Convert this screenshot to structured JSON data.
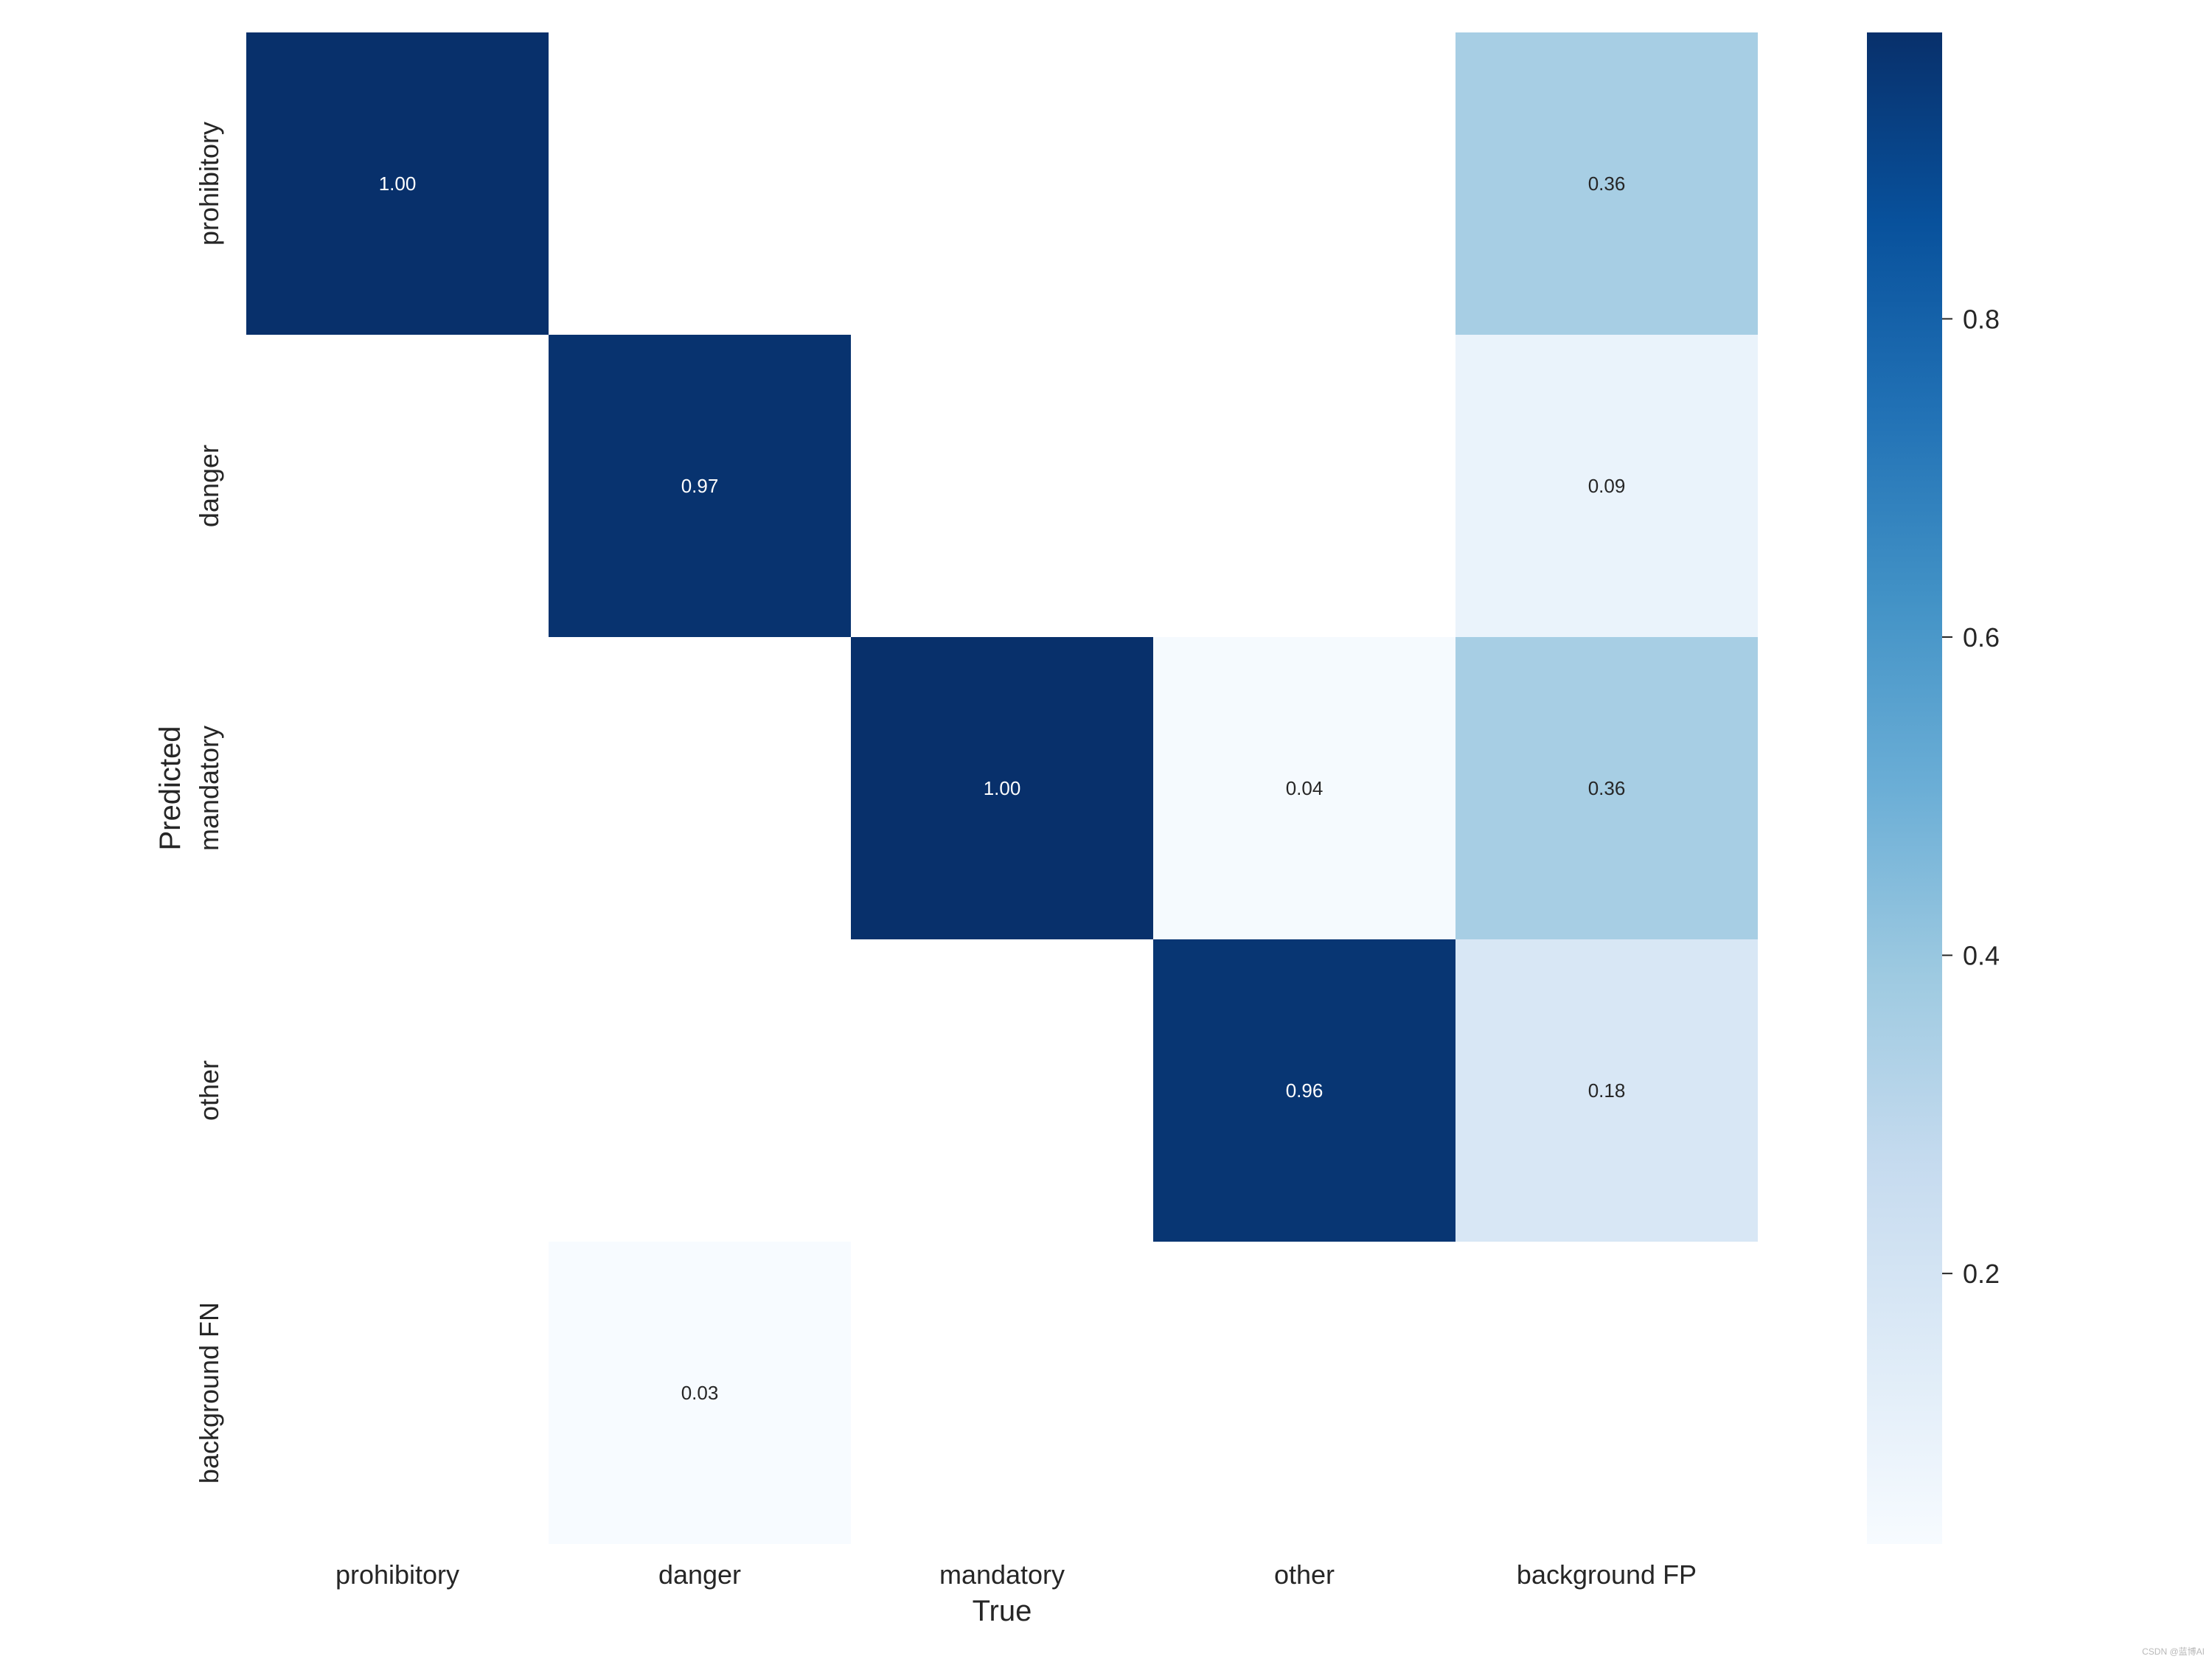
{
  "chart_data": {
    "type": "heatmap",
    "title": "",
    "xlabel": "True",
    "ylabel": "Predicted",
    "x_categories": [
      "prohibitory",
      "danger",
      "mandatory",
      "other",
      "background FP"
    ],
    "y_categories": [
      "prohibitory",
      "danger",
      "mandatory",
      "other",
      "background FN"
    ],
    "values": [
      [
        1.0,
        null,
        null,
        null,
        0.36
      ],
      [
        null,
        0.97,
        null,
        null,
        0.09
      ],
      [
        null,
        null,
        1.0,
        0.04,
        0.36
      ],
      [
        null,
        null,
        null,
        0.96,
        0.18
      ],
      [
        null,
        0.03,
        null,
        null,
        null
      ]
    ],
    "colorbar": {
      "cmap": "Blues",
      "range": [
        0.03,
        0.98
      ],
      "ticks": [
        0.2,
        0.4,
        0.6,
        0.8
      ]
    },
    "colors": {
      "low": "#f7fbff",
      "high": "#08306b"
    }
  },
  "watermark": "CSDN @蓝博AI"
}
